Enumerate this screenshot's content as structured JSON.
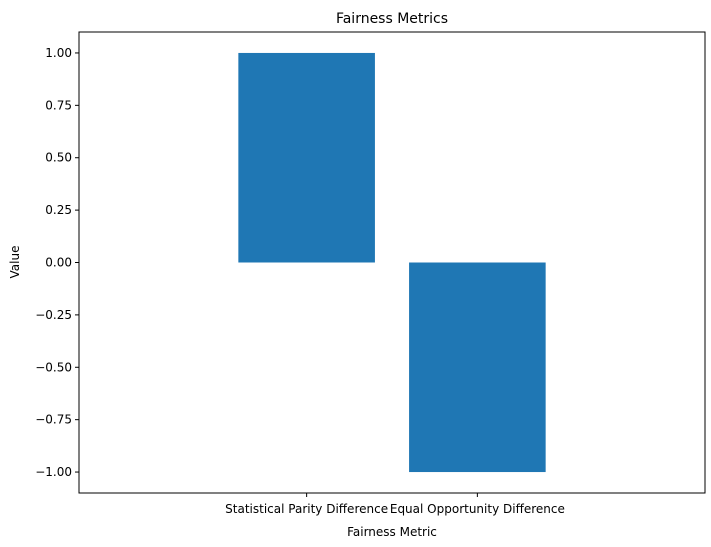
{
  "chart_data": {
    "type": "bar",
    "title": "Fairness Metrics",
    "xlabel": "Fairness Metric",
    "ylabel": "Value",
    "categories": [
      "Statistical Parity Difference",
      "Equal Opportunity Difference"
    ],
    "values": [
      1.0,
      -1.0
    ],
    "ylim": [
      -1.1,
      1.1
    ],
    "yticks": [
      1.0,
      0.75,
      0.5,
      0.25,
      0.0,
      -0.25,
      -0.5,
      -0.75,
      -1.0
    ],
    "ytick_labels": [
      "1.00",
      "0.75",
      "0.50",
      "0.25",
      "0.00",
      "−0.25",
      "−0.50",
      "−0.75",
      "−1.00"
    ],
    "bar_color": "#1f77b4",
    "grid": false,
    "legend": "none"
  }
}
